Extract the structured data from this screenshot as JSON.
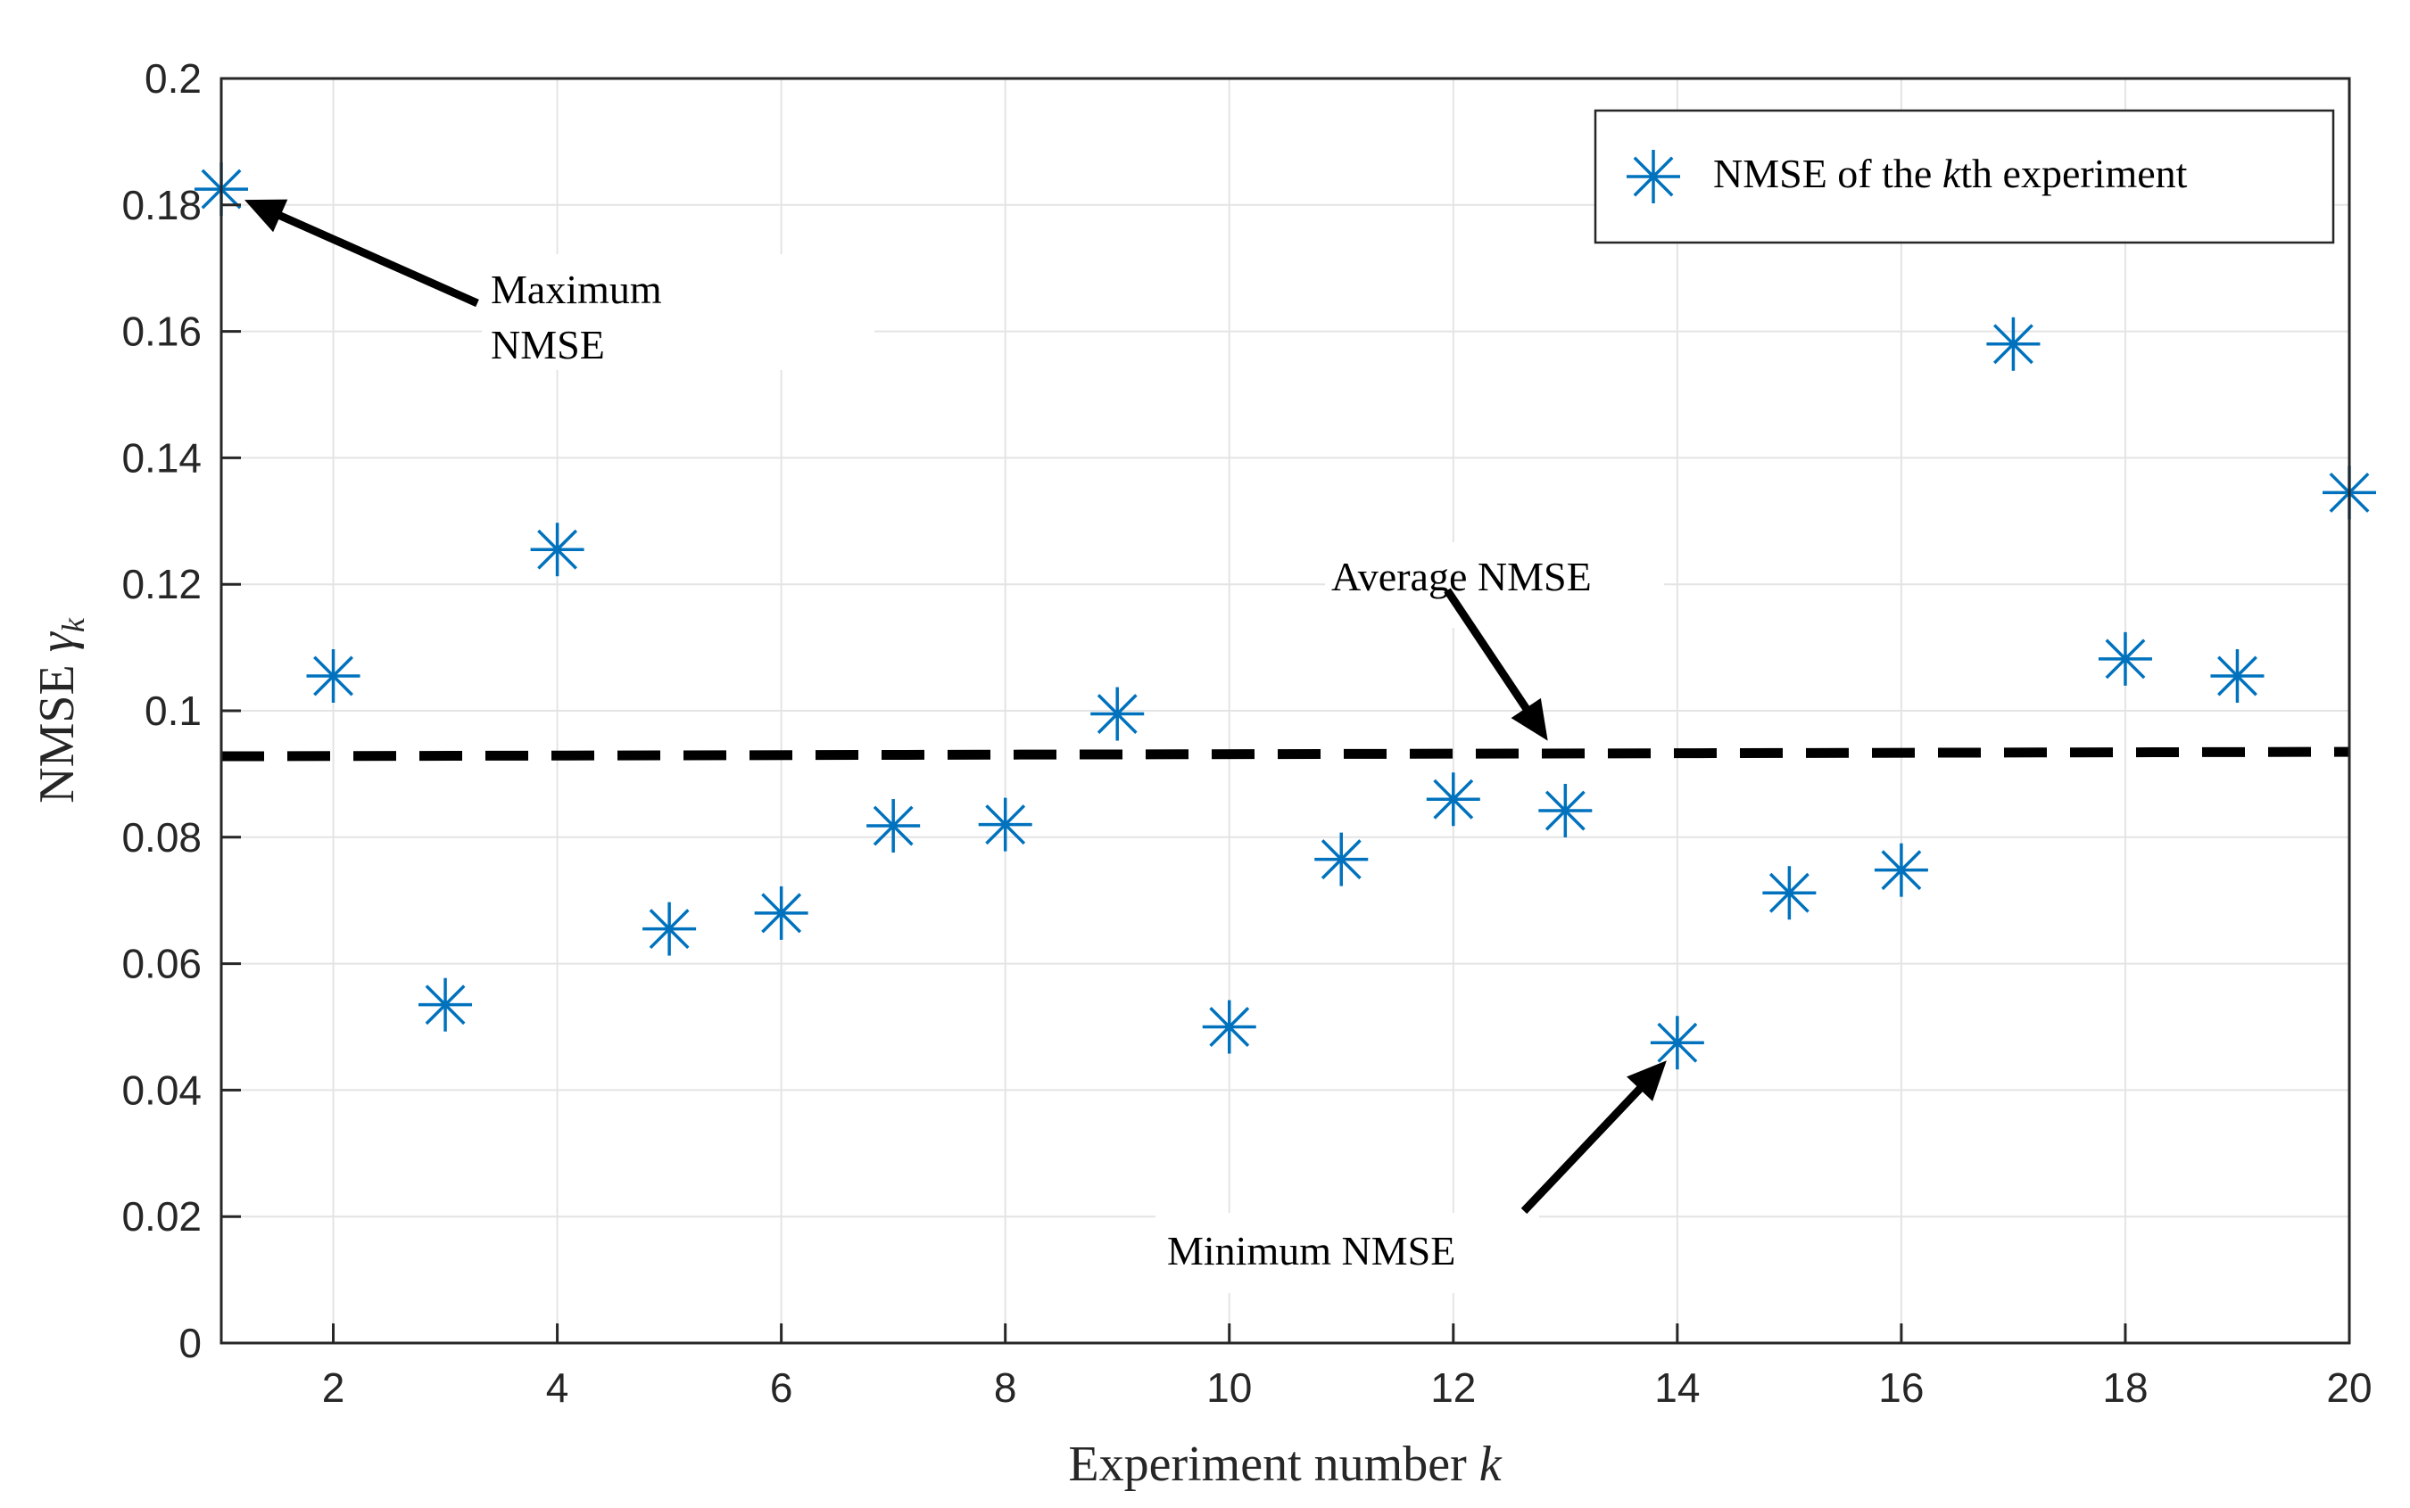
{
  "chart_data": {
    "type": "scatter",
    "title": "",
    "xlabel": "Experiment number",
    "xlabel_var": "k",
    "ylabel": "NMSE",
    "ylabel_var": "γ",
    "ylabel_sub": "k",
    "xlim": [
      1,
      20
    ],
    "ylim": [
      0,
      0.2
    ],
    "xticks": [
      2,
      4,
      6,
      8,
      10,
      12,
      14,
      16,
      18,
      20
    ],
    "yticks": [
      0,
      0.02,
      0.04,
      0.06,
      0.08,
      0.1,
      0.12,
      0.14,
      0.16,
      0.18,
      0.2
    ],
    "grid": true,
    "series": [
      {
        "name": "NMSE of the kth experiment",
        "marker": "asterisk",
        "color": "#0072BD",
        "x": [
          1,
          2,
          3,
          4,
          5,
          6,
          7,
          8,
          9,
          10,
          11,
          12,
          13,
          14,
          15,
          16,
          17,
          18,
          19,
          20
        ],
        "y": [
          0.1825,
          0.1055,
          0.0535,
          0.1255,
          0.0655,
          0.068,
          0.0818,
          0.082,
          0.0995,
          0.05,
          0.0765,
          0.086,
          0.0842,
          0.0475,
          0.0712,
          0.0748,
          0.158,
          0.1082,
          0.1055,
          0.1345
        ]
      },
      {
        "name": "Average NMSE",
        "style": "dashed",
        "color": "#000000",
        "x": [
          1,
          20
        ],
        "y": [
          0.0928,
          0.0935
        ]
      }
    ],
    "legend": {
      "position": "top-right",
      "prefix": "NMSE of the ",
      "var": "k",
      "suffix": "th experiment"
    },
    "annotations": {
      "max": {
        "lines": [
          "Maximum",
          "NMSE"
        ],
        "target": [
          1,
          0.1825
        ]
      },
      "avg": {
        "lines": [
          "Average NMSE"
        ],
        "target": [
          12.7,
          0.093
        ]
      },
      "min": {
        "lines": [
          "Minimum NMSE"
        ],
        "target": [
          14,
          0.0475
        ]
      }
    }
  }
}
